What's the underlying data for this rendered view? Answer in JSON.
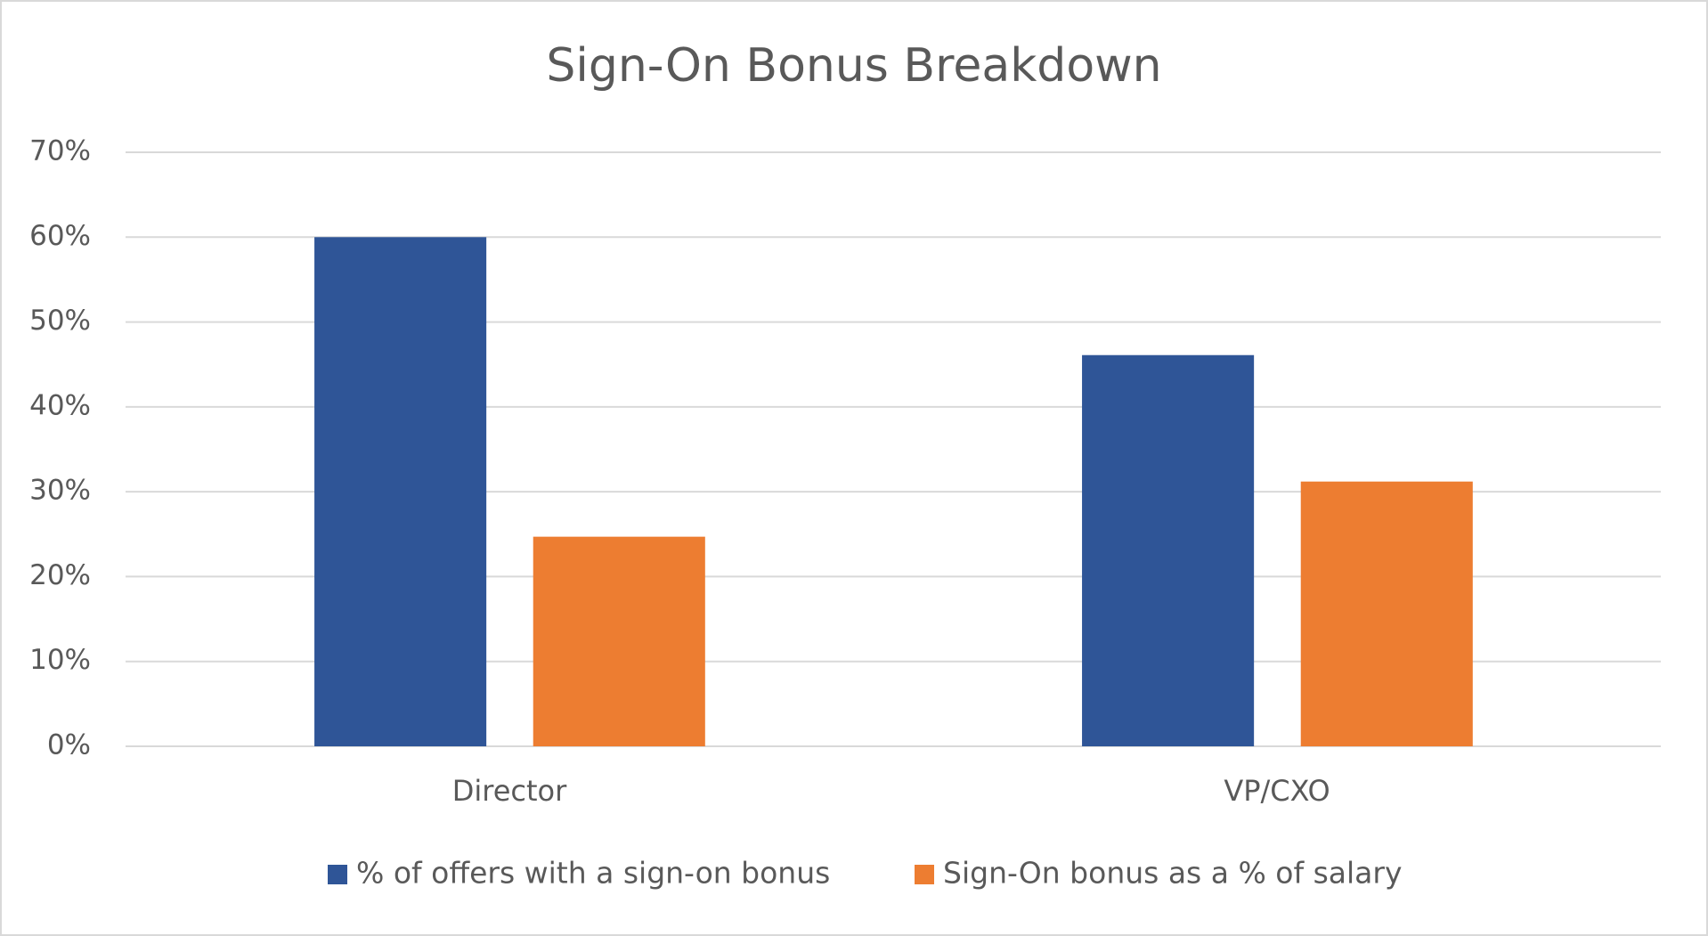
{
  "chart_data": {
    "type": "bar",
    "title": "Sign-On Bonus Breakdown",
    "categories": [
      "Director",
      "VP/CXO"
    ],
    "series": [
      {
        "name": "% of offers with a sign-on bonus",
        "color": "#2f5597",
        "values": [
          60,
          46.1
        ]
      },
      {
        "name": "Sign-On bonus as a % of salary",
        "color": "#ed7d31",
        "values": [
          24.7,
          31.2
        ]
      }
    ],
    "ylim": [
      0,
      70
    ],
    "yticks": [
      {
        "value": 0,
        "label": "0%"
      },
      {
        "value": 10,
        "label": "10%"
      },
      {
        "value": 20,
        "label": "20%"
      },
      {
        "value": 30,
        "label": "30%"
      },
      {
        "value": 40,
        "label": "40%"
      },
      {
        "value": 50,
        "label": "50%"
      },
      {
        "value": 60,
        "label": "60%"
      },
      {
        "value": 70,
        "label": "70%"
      }
    ],
    "grid": true,
    "legend": "bottom"
  }
}
